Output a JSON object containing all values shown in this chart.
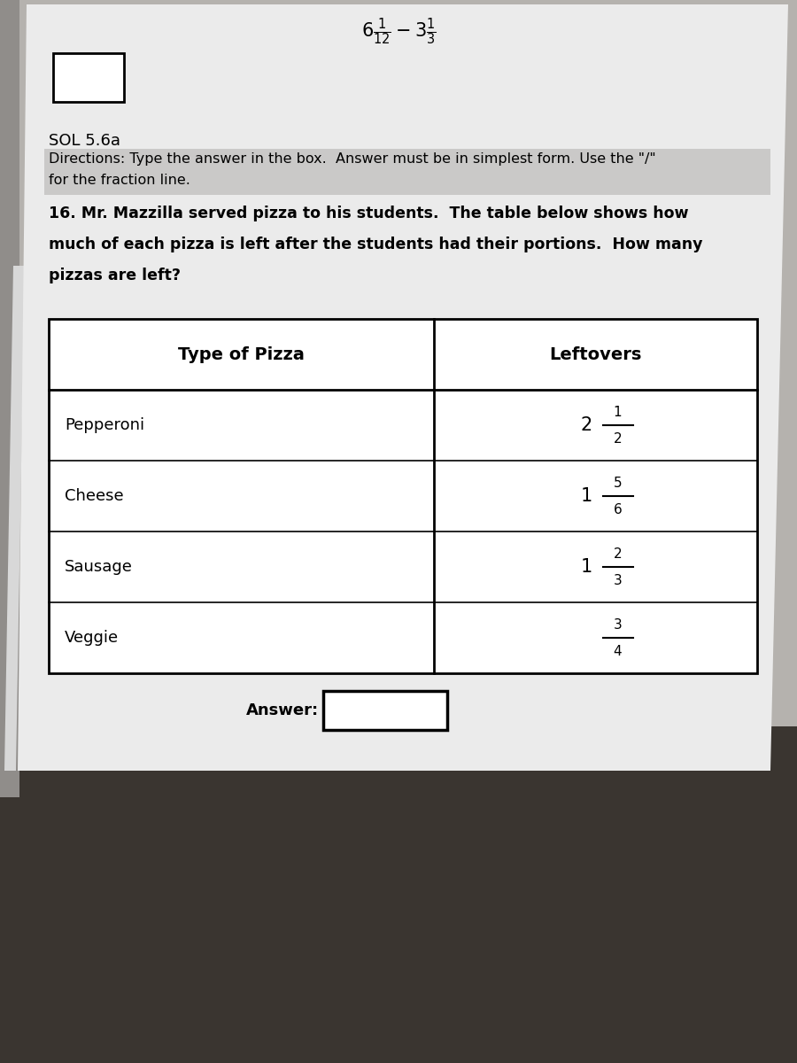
{
  "bg_top_color": "#b8b4b0",
  "bg_bottom_color": "#3a3530",
  "paper_color": "#e8e8e8",
  "paper_white": "#f2f1f0",
  "sol_label": "SOL 5.6a",
  "directions_line1": "Directions: Type the answer in the box.  Answer must be in simplest form. Use the \"/\"",
  "directions_line2": "for the fraction line.",
  "problem_bold": "16. Mr. Mazzilla served pizza to his students.  The table below shows how\nmuch of each pizza is left after the students had their portions.  How many\npizzas are left?",
  "col1_header": "Type of Pizza",
  "col2_header": "Leftovers",
  "rows": [
    {
      "type": "Pepperoni",
      "leftover_whole": "2",
      "leftover_num": "1",
      "leftover_den": "2"
    },
    {
      "type": "Cheese",
      "leftover_whole": "1",
      "leftover_num": "5",
      "leftover_den": "6"
    },
    {
      "type": "Sausage",
      "leftover_whole": "1",
      "leftover_num": "2",
      "leftover_den": "3"
    },
    {
      "type": "Veggie",
      "leftover_whole": "",
      "leftover_num": "3",
      "leftover_den": "4"
    }
  ],
  "answer_label": "Answer:",
  "header_formula": "6\\frac{1}{12} - 3\\frac{1}{3}"
}
